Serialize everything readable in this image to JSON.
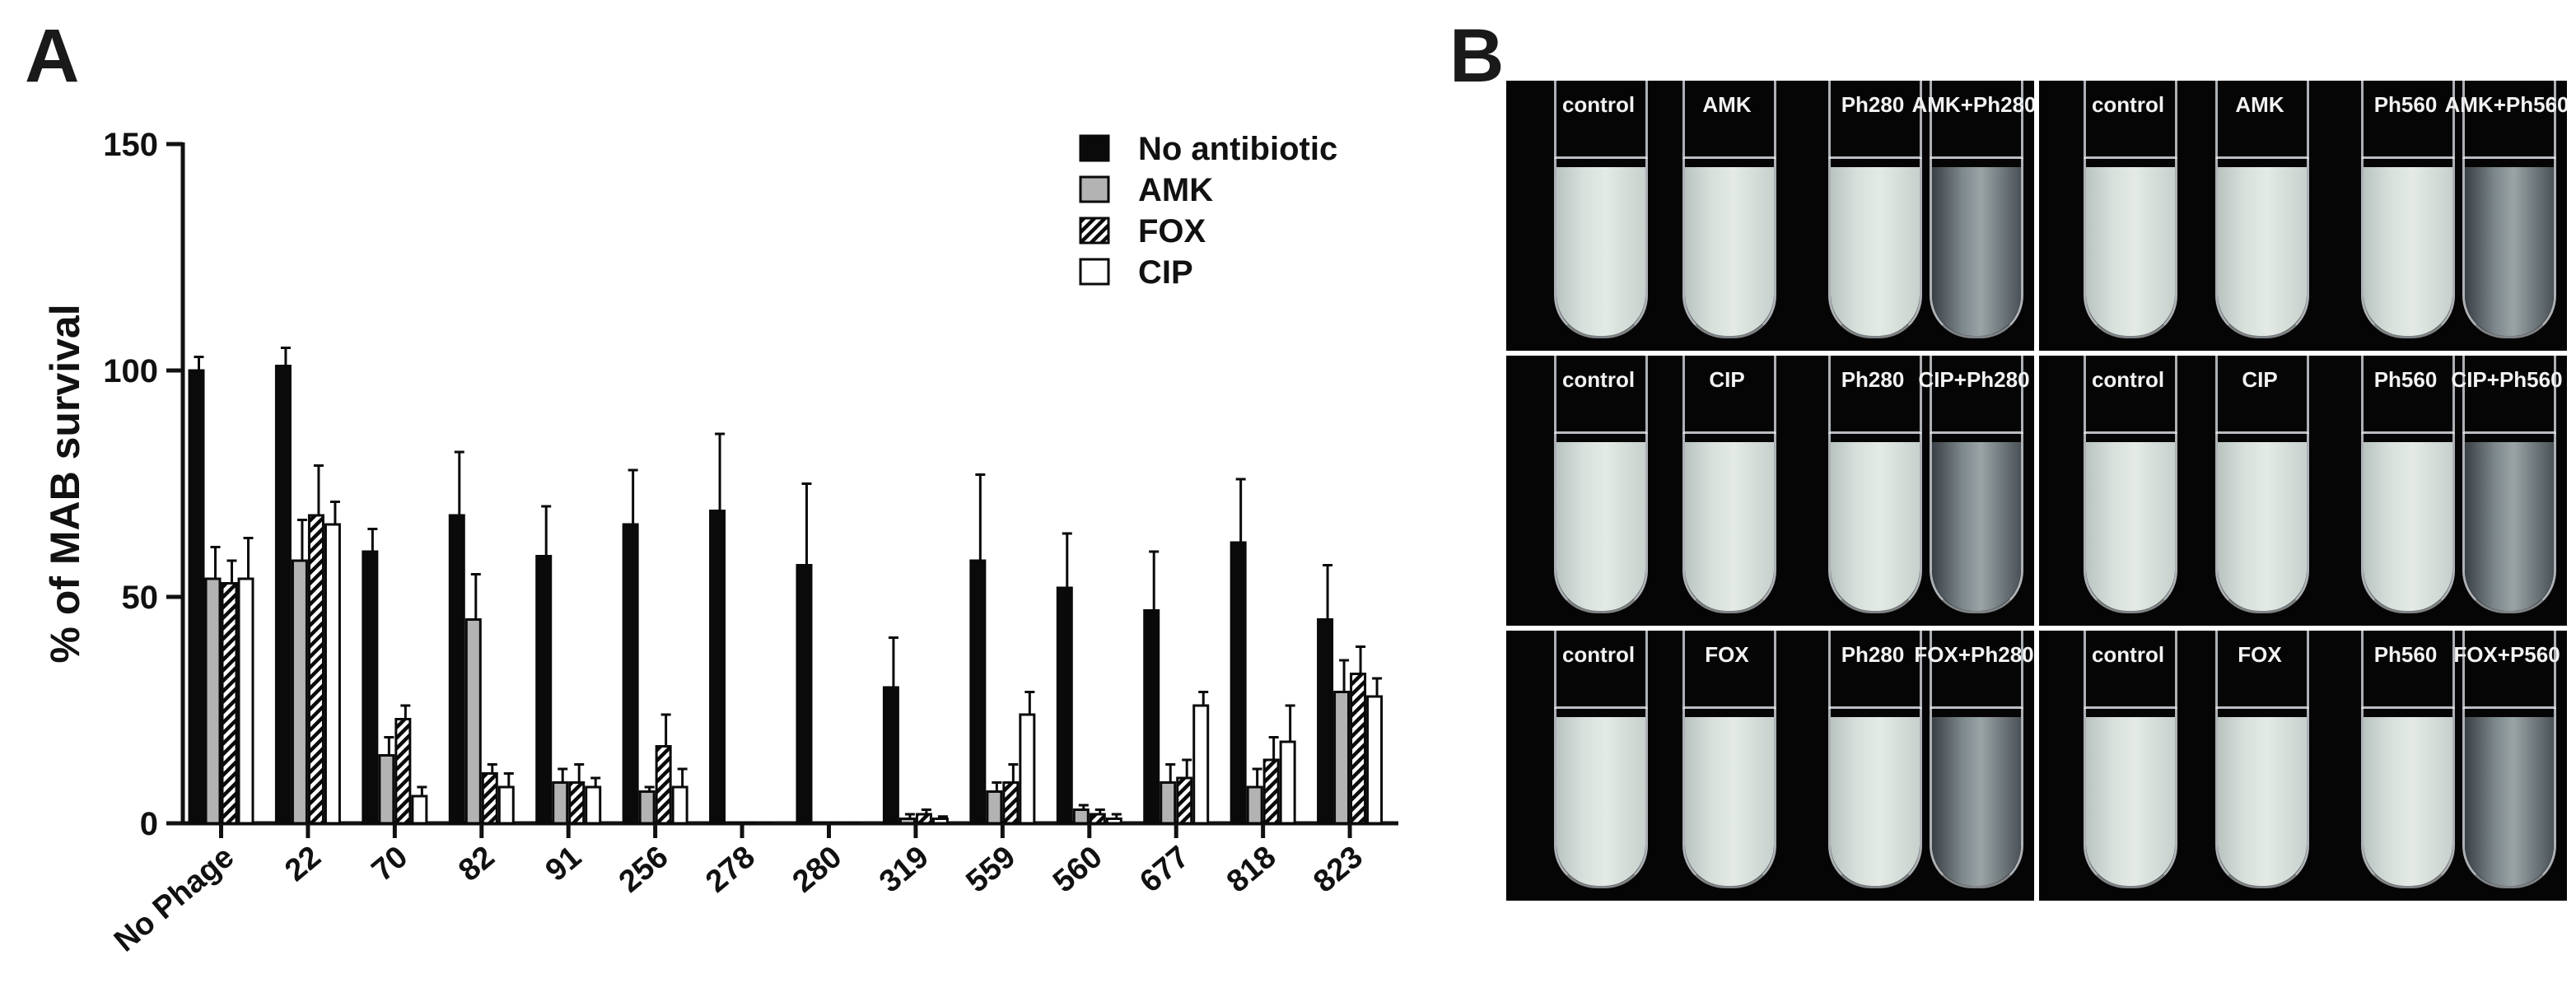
{
  "panel_a": {
    "letter": "A"
  },
  "panel_b": {
    "letter": "B",
    "rows": [
      [
        {
          "labels": [
            "control",
            "AMK",
            "Ph280",
            "AMK+Ph280"
          ],
          "clear": [
            false,
            false,
            false,
            true
          ]
        },
        {
          "labels": [
            "control",
            "AMK",
            "Ph560",
            "AMK+Ph560"
          ],
          "clear": [
            false,
            false,
            false,
            true
          ]
        }
      ],
      [
        {
          "labels": [
            "control",
            "CIP",
            "Ph280",
            "CIP+Ph280"
          ],
          "clear": [
            false,
            false,
            false,
            true
          ]
        },
        {
          "labels": [
            "control",
            "CIP",
            "Ph560",
            "CIP+Ph560"
          ],
          "clear": [
            false,
            false,
            false,
            true
          ]
        }
      ],
      [
        {
          "labels": [
            "control",
            "FOX",
            "Ph280",
            "FOX+Ph280"
          ],
          "clear": [
            false,
            false,
            false,
            true
          ]
        },
        {
          "labels": [
            "control",
            "FOX",
            "Ph560",
            "FOX+P560"
          ],
          "clear": [
            false,
            false,
            false,
            true
          ]
        }
      ]
    ]
  },
  "chart_data": {
    "type": "bar",
    "title": "",
    "xlabel": "",
    "ylabel": "% of MAB survival",
    "ylim": [
      0,
      150
    ],
    "yticks": [
      0,
      50,
      100,
      150
    ],
    "categories": [
      "No Phage",
      "22",
      "70",
      "82",
      "91",
      "256",
      "278",
      "280",
      "319",
      "559",
      "560",
      "677",
      "818",
      "823"
    ],
    "series": [
      {
        "name": "No antibiotic",
        "fill": "solid-black",
        "values": [
          100,
          101,
          60,
          68,
          59,
          66,
          69,
          57,
          30,
          58,
          52,
          47,
          62,
          45
        ],
        "errors": [
          3,
          4,
          5,
          14,
          11,
          12,
          17,
          18,
          11,
          19,
          12,
          13,
          14,
          12
        ]
      },
      {
        "name": "AMK",
        "fill": "gray",
        "values": [
          54,
          58,
          15,
          45,
          9,
          7,
          0,
          0,
          1,
          7,
          3,
          9,
          8,
          29
        ],
        "errors": [
          7,
          9,
          4,
          10,
          3,
          1,
          0,
          0,
          1,
          2,
          1,
          4,
          4,
          7
        ]
      },
      {
        "name": "FOX",
        "fill": "hatched",
        "values": [
          53,
          68,
          23,
          11,
          9,
          17,
          0,
          0,
          2,
          9,
          2,
          10,
          14,
          33
        ],
        "errors": [
          5,
          11,
          3,
          2,
          4,
          7,
          0,
          0,
          1,
          4,
          1,
          4,
          5,
          6
        ]
      },
      {
        "name": "CIP",
        "fill": "white",
        "values": [
          54,
          66,
          6,
          8,
          8,
          8,
          0,
          0,
          1,
          24,
          1,
          26,
          18,
          28
        ],
        "errors": [
          9,
          5,
          2,
          3,
          2,
          4,
          0,
          0,
          0.5,
          5,
          1,
          3,
          8,
          4
        ]
      }
    ],
    "legend_position": "top-right",
    "grid": false,
    "colors": {
      "solid": "#0a0a0a",
      "gray": "#b3b3b3",
      "hatch": "#0a0a0a",
      "white": "#ffffff"
    }
  }
}
